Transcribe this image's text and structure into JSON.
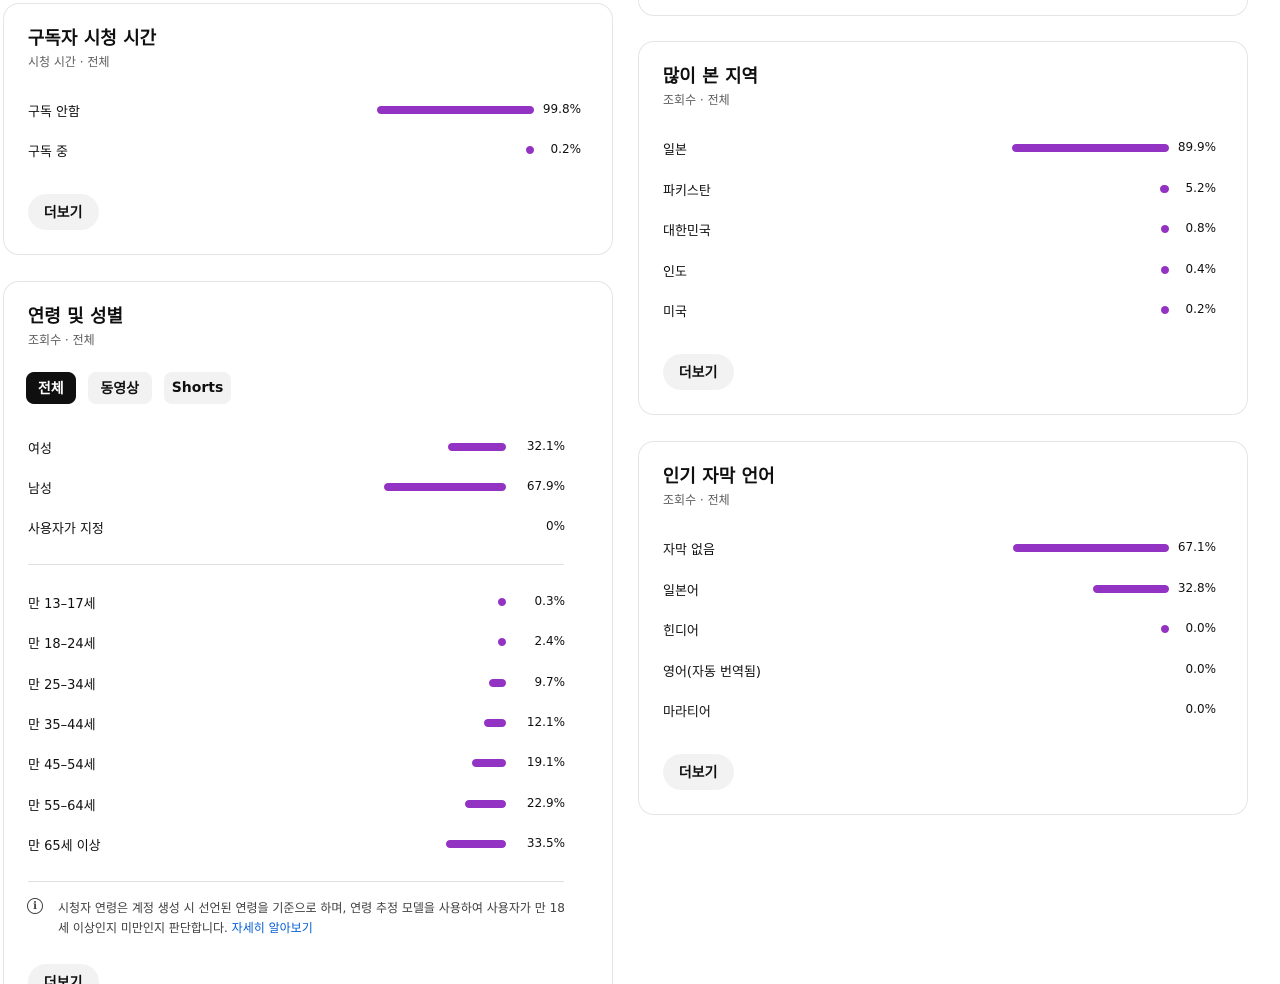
{
  "colors": {
    "bar": "#9333c4",
    "link": "#065fd4"
  },
  "sub_watch": {
    "title": "구독자 시청 시간",
    "subtitle": "시청 시간 · 전체",
    "rows": [
      {
        "label": "구독 안함",
        "value": "99.8%",
        "fraction": 0.998
      },
      {
        "label": "구독 중",
        "value": "0.2%",
        "fraction": 0.002
      }
    ],
    "more_label": "더보기"
  },
  "age_gender": {
    "title": "연령 및 성별",
    "subtitle": "조회수 · 전체",
    "chips": [
      "전체",
      "동영상",
      "Shorts"
    ],
    "gender_rows": [
      {
        "label": "여성",
        "value": "32.1%",
        "fraction": 0.321
      },
      {
        "label": "남성",
        "value": "67.9%",
        "fraction": 0.679
      },
      {
        "label": "사용자가 지정",
        "value": "0%",
        "fraction": 0
      }
    ],
    "age_rows": [
      {
        "label": "만 13–17세",
        "value": "0.3%",
        "fraction": 0.003
      },
      {
        "label": "만 18–24세",
        "value": "2.4%",
        "fraction": 0.024
      },
      {
        "label": "만 25–34세",
        "value": "9.7%",
        "fraction": 0.097
      },
      {
        "label": "만 35–44세",
        "value": "12.1%",
        "fraction": 0.121
      },
      {
        "label": "만 45–54세",
        "value": "19.1%",
        "fraction": 0.191
      },
      {
        "label": "만 55–64세",
        "value": "22.9%",
        "fraction": 0.229
      },
      {
        "label": "만 65세 이상",
        "value": "33.5%",
        "fraction": 0.335
      }
    ],
    "note": "시청자 연령은 계정 생성 시 선언된 연령을 기준으로 하며, 연령 추정 모델을 사용하여 사용자가 만 18세 이상인지 미만인지 판단합니다.",
    "note_link": "자세히 알아보기",
    "more_label": "더보기"
  },
  "regions": {
    "title": "많이 본 지역",
    "subtitle": "조회수 · 전체",
    "rows": [
      {
        "label": "일본",
        "value": "89.9%",
        "fraction": 0.899
      },
      {
        "label": "파키스탄",
        "value": "5.2%",
        "fraction": 0.052
      },
      {
        "label": "대한민국",
        "value": "0.8%",
        "fraction": 0.008
      },
      {
        "label": "인도",
        "value": "0.4%",
        "fraction": 0.004
      },
      {
        "label": "미국",
        "value": "0.2%",
        "fraction": 0.002
      }
    ],
    "more_label": "더보기"
  },
  "subtitles_lang": {
    "title": "인기 자막 언어",
    "subtitle": "조회수 · 전체",
    "rows": [
      {
        "label": "자막 없음",
        "value": "67.1%",
        "fraction": 0.671
      },
      {
        "label": "일본어",
        "value": "32.8%",
        "fraction": 0.328
      },
      {
        "label": "힌디어",
        "value": "0.0%",
        "fraction": 0.0004
      },
      {
        "label": "영어(자동 번역됨)",
        "value": "0.0%",
        "fraction": 0
      },
      {
        "label": "마라티어",
        "value": "0.0%",
        "fraction": 0
      }
    ],
    "more_label": "더보기"
  }
}
